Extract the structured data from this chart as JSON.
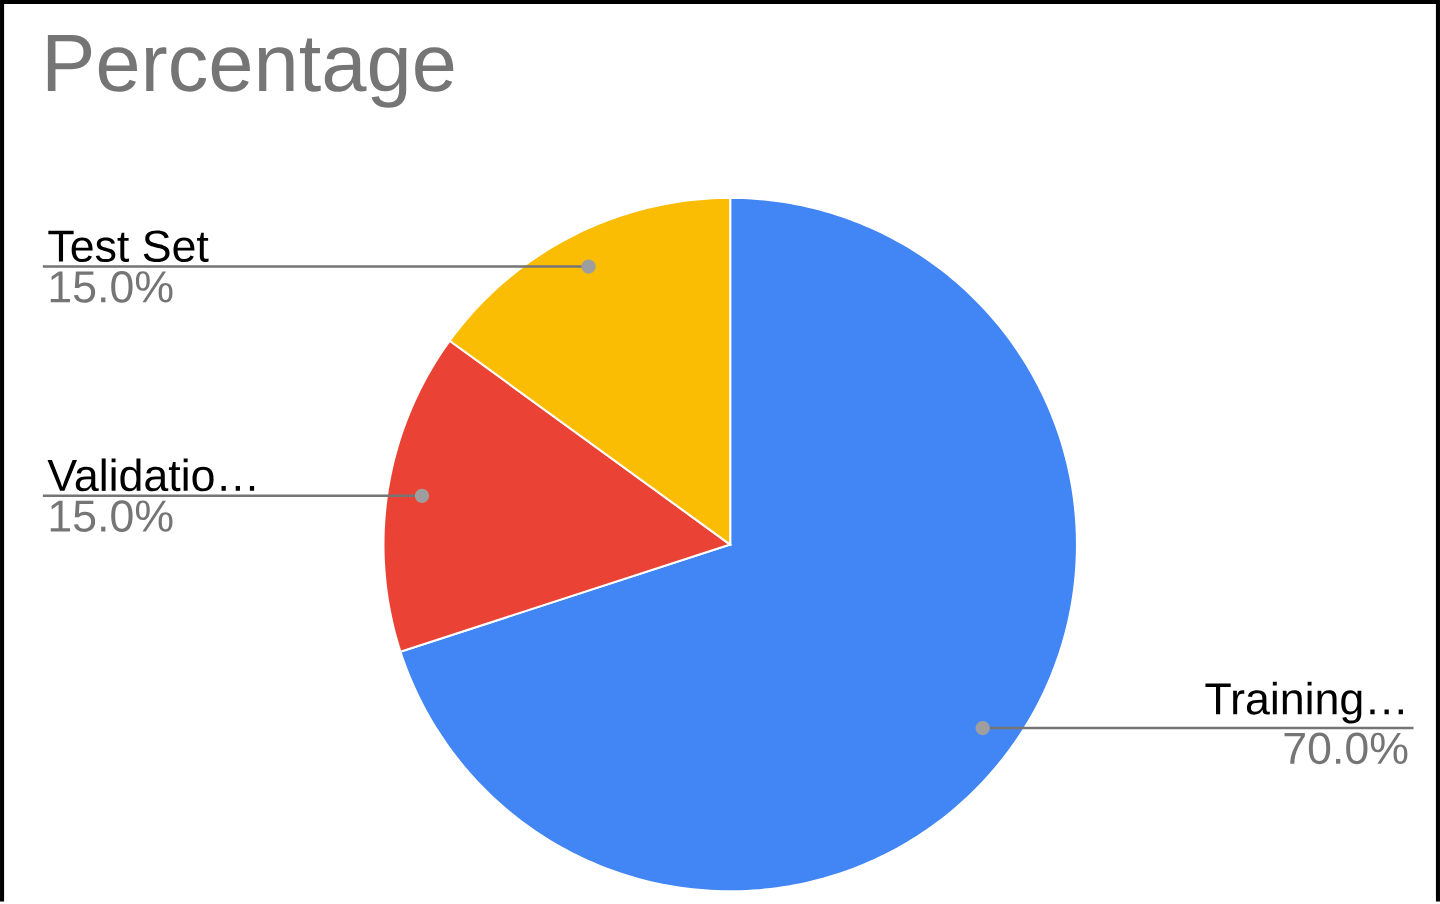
{
  "chart_data": {
    "type": "pie",
    "title": "Percentage",
    "categories": [
      "Training…",
      "Validatio…",
      "Test Set"
    ],
    "values": [
      70,
      15,
      15
    ],
    "colors": [
      "#4285f4",
      "#ea4335",
      "#fbbc04"
    ],
    "value_labels": [
      "70.0%",
      "15.0%",
      "15.0%"
    ]
  }
}
